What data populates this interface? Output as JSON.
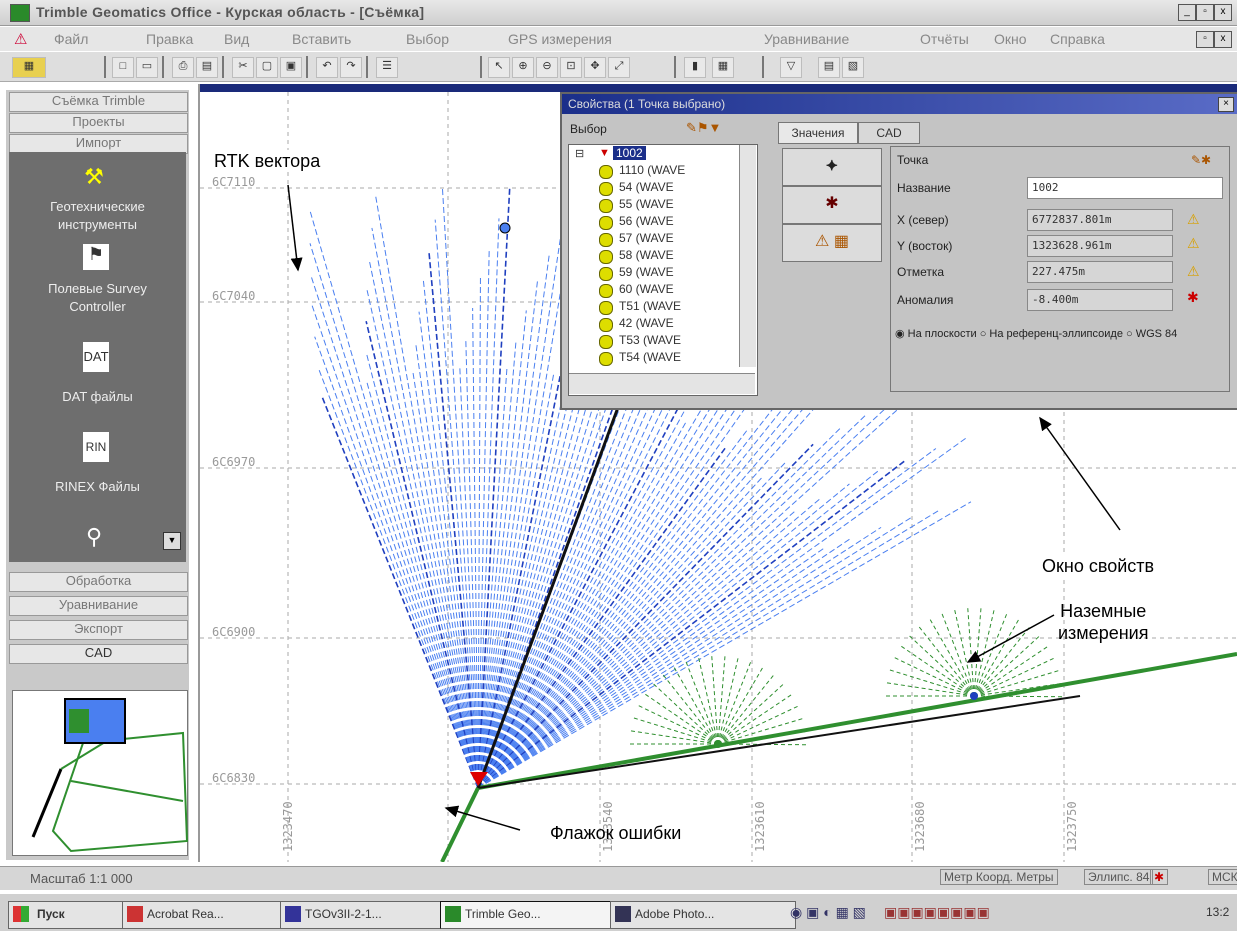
{
  "window": {
    "title": "Trimble Geomatics Office - Курская область - [Съёмка]",
    "controls": [
      "_",
      "▫",
      "x"
    ]
  },
  "menu": [
    "Файл",
    "Правка",
    "Вид",
    "Вставить",
    "Выбор",
    "GPS измерения",
    "Уравнивание",
    "Отчёты",
    "Окно",
    "Справка"
  ],
  "sidebar": {
    "top_buttons": [
      "Съёмка Trimble",
      "Проекты",
      "Импорт"
    ],
    "tools": [
      {
        "label": "Геотехнические инструменты",
        "icon": "instruments-icon"
      },
      {
        "label": "Полевые Survey Controller",
        "icon": "survey-controller-icon"
      },
      {
        "label": "DAT файлы",
        "icon": "dat-file-icon"
      },
      {
        "label": "RINEX Файлы",
        "icon": "rinex-file-icon"
      },
      {
        "label": "",
        "icon": "gps-receiver-icon"
      }
    ],
    "bottom_buttons": [
      "Обработка",
      "Уравнивание",
      "Экспорт",
      "CAD"
    ]
  },
  "map": {
    "northings": [
      "6C7110",
      "6C7040",
      "6C6970",
      "6C6900",
      "6C6830"
    ],
    "eastings": [
      "1323470",
      "1323540",
      "1323610",
      "1323680",
      "1323750"
    ]
  },
  "properties": {
    "caption": "Свойства (1 Точка выбрано)",
    "select_label": "Выбор",
    "tabs": [
      "Значения",
      "CAD"
    ],
    "tree_root": "1002",
    "tree_items": [
      "1110 (WAVE",
      "54 (WAVE",
      "55 (WAVE",
      "56 (WAVE",
      "57 (WAVE",
      "58 (WAVE",
      "59 (WAVE",
      "60 (WAVE",
      "T51 (WAVE",
      "42 (WAVE",
      "T53 (WAVE",
      "T54 (WAVE"
    ],
    "section_label": "Точка",
    "fields": [
      {
        "label": "Название",
        "value": "1002"
      },
      {
        "label": "Х (север)",
        "value": "6772837.801m"
      },
      {
        "label": "Y (восток)",
        "value": "1323628.961m"
      },
      {
        "label": "Отметка",
        "value": "227.475m"
      },
      {
        "label": "Аномалия",
        "value": "-8.400m"
      }
    ],
    "radio": [
      "На плоскости",
      "На референц-эллипсоиде",
      "WGS 84"
    ]
  },
  "annotations": {
    "rtk": "RTK вектора",
    "props": "Окно свойств",
    "ground": "Наземные\nизмерения",
    "flag": "Флажок ошибки"
  },
  "statusbar": {
    "left": "Масштаб 1:1 000",
    "right_1": "Метр Коорд. Метры",
    "right_2": "Эллипс. 84",
    "right_3": "МСК"
  },
  "taskbar": {
    "start": "Пуск",
    "tasks": [
      "Acrobat Rea...",
      "TGOv3II-2-1...",
      "Trimble Geo...",
      "Adobe Photo..."
    ],
    "clock": "13:2"
  },
  "colors": {
    "vector_blue": "#4a7ff0",
    "vector_dark": "#1f3fbf",
    "ground_green": "#2f8f2f",
    "titlebar": "#1b2f8a"
  }
}
